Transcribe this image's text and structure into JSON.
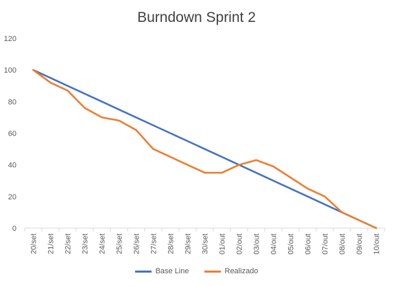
{
  "chart_data": {
    "type": "line",
    "title": "Burndown Sprint 2",
    "categories": [
      "20/set",
      "21/set",
      "22/set",
      "23/set",
      "24/set",
      "25/set",
      "26/set",
      "27/set",
      "28/set",
      "29/set",
      "30/set",
      "01/out",
      "02/out",
      "03/out",
      "04/out",
      "05/out",
      "06/out",
      "07/out",
      "08/out",
      "09/out",
      "10/out"
    ],
    "ylim": [
      0,
      120
    ],
    "yticks": [
      "0",
      "20",
      "40",
      "60",
      "80",
      "100",
      "120"
    ],
    "grid": false,
    "legend_position": "bottom",
    "series": [
      {
        "name": "Base Line",
        "color": "#4472C4",
        "values": [
          100,
          95,
          90,
          85,
          80,
          75,
          70,
          65,
          60,
          55,
          50,
          45,
          40,
          35,
          30,
          25,
          20,
          15,
          10,
          5,
          0
        ]
      },
      {
        "name": "Realizado",
        "color": "#ED7D31",
        "values": [
          100,
          92,
          87,
          76,
          70,
          68,
          62,
          50,
          45,
          40,
          35,
          35,
          40,
          43,
          39,
          32,
          25,
          20,
          10,
          5,
          0
        ]
      }
    ]
  }
}
